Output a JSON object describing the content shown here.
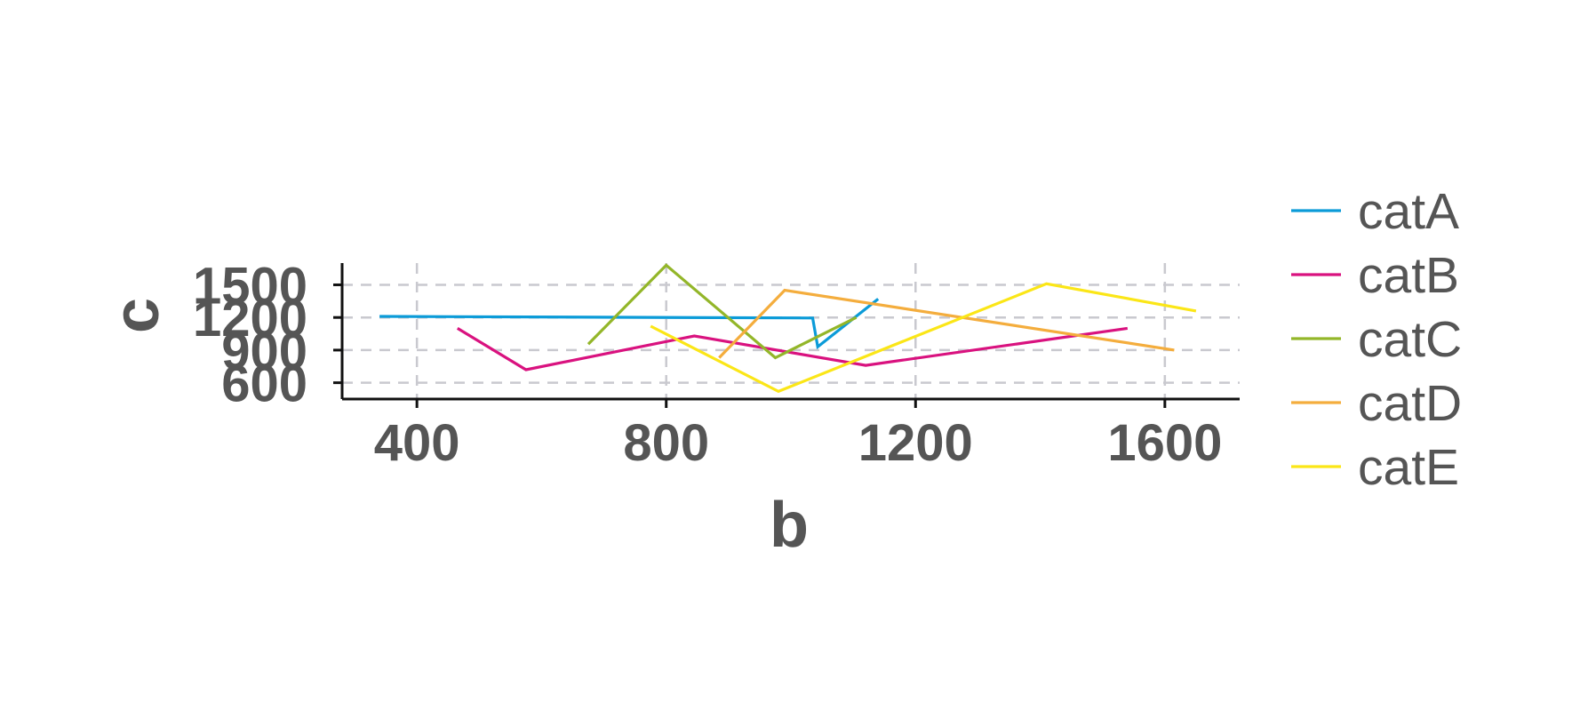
{
  "chart_data": {
    "type": "line",
    "title": "",
    "xlabel": "b",
    "ylabel": "c",
    "xlim": [
      280,
      1720
    ],
    "ylim": [
      450,
      1700
    ],
    "xticks": [
      400,
      800,
      1200,
      1600
    ],
    "yticks": [
      600,
      900,
      1200,
      1500
    ],
    "grid": true,
    "legend_position": "right",
    "series": [
      {
        "name": "catA",
        "color": "#0b9bd8",
        "x": [
          340,
          1035,
          1043,
          1140
        ],
        "y": [
          1210,
          1195,
          930,
          1370
        ]
      },
      {
        "name": "catB",
        "color": "#d9127f",
        "x": [
          465,
          575,
          845,
          1120,
          1540
        ],
        "y": [
          1100,
          720,
          1030,
          760,
          1100
        ]
      },
      {
        "name": "catC",
        "color": "#93b629",
        "x": [
          675,
          800,
          975,
          1105
        ],
        "y": [
          955,
          1680,
          830,
          1200
        ]
      },
      {
        "name": "catD",
        "color": "#f4ad3d",
        "x": [
          885,
          990,
          1615
        ],
        "y": [
          830,
          1450,
          900
        ]
      },
      {
        "name": "catE",
        "color": "#fbe617",
        "x": [
          775,
          980,
          1410,
          1650
        ],
        "y": [
          1120,
          520,
          1510,
          1260
        ]
      }
    ]
  }
}
